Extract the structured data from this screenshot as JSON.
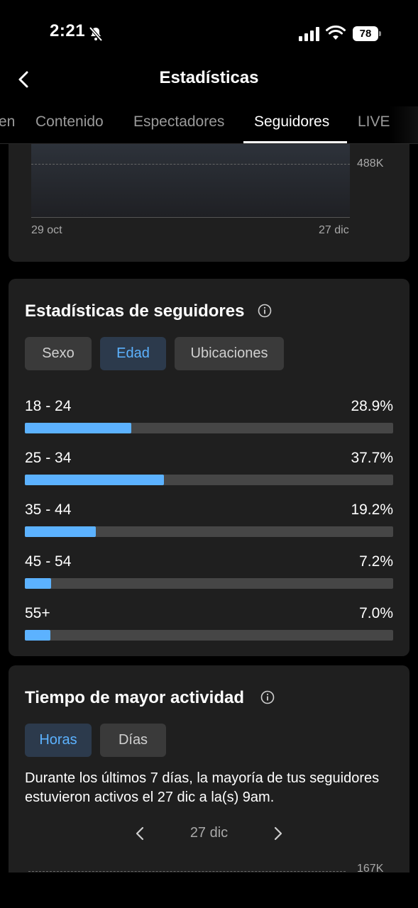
{
  "status": {
    "time": "2:21",
    "battery": "78"
  },
  "header": {
    "title": "Estadísticas"
  },
  "tabs": [
    {
      "label": "en"
    },
    {
      "label": "Contenido"
    },
    {
      "label": "Espectadores"
    },
    {
      "label": "Seguidores",
      "active": true
    },
    {
      "label": "LIVE"
    }
  ],
  "top_chart": {
    "y_tick": "488K",
    "x_start": "29 oct",
    "x_end": "27 dic"
  },
  "followers": {
    "title": "Estadísticas de seguidores",
    "chips": [
      "Sexo",
      "Edad",
      "Ubicaciones"
    ],
    "active_chip": "Edad",
    "accent_color": "#5cb2ff",
    "ages": [
      {
        "label": "18 - 24",
        "pct_text": "28.9%",
        "value": 28.9
      },
      {
        "label": "25 - 34",
        "pct_text": "37.7%",
        "value": 37.7
      },
      {
        "label": "35 - 44",
        "pct_text": "19.2%",
        "value": 19.2
      },
      {
        "label": "45 - 54",
        "pct_text": "7.2%",
        "value": 7.2
      },
      {
        "label": "55+",
        "pct_text": "7.0%",
        "value": 7.0
      }
    ]
  },
  "activity": {
    "title": "Tiempo de mayor actividad",
    "chips": [
      "Horas",
      "Días"
    ],
    "active_chip": "Horas",
    "description": "Durante los últimos 7 días, la mayoría de tus seguidores estuvieron activos el 27 dic a la(s) 9am.",
    "date": "27 dic",
    "y_tick": "167K"
  },
  "icons": {
    "back": "chevron-left-icon",
    "bell": "bell-off-icon",
    "info": "info-icon",
    "prev": "chevron-left-icon",
    "next": "chevron-right-icon"
  }
}
